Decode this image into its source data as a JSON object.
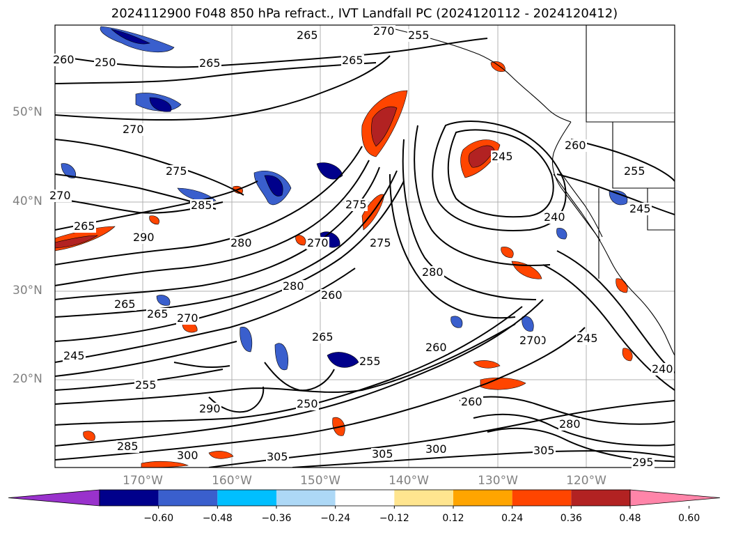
{
  "title": "2024112900 F048 850 hPa refract., IVT Landfall PC (2024120112 - 2024120412)",
  "lat_labels": [
    "50°N",
    "40°N",
    "30°N",
    "20°N"
  ],
  "lon_labels": [
    "170°W",
    "160°W",
    "150°W",
    "140°W",
    "130°W",
    "120°W"
  ],
  "colorbar": {
    "colors": [
      "#9932cc",
      "#00008b",
      "#3a5fcd",
      "#00bfff",
      "#add8f6",
      "#ffffff",
      "#ffe58f",
      "#ffa500",
      "#ff4500",
      "#b22222",
      "#ff85a9"
    ],
    "ticks": [
      "−0.60",
      "−0.48",
      "−0.36",
      "−0.24",
      "−0.12",
      "0.12",
      "0.24",
      "0.36",
      "0.48",
      "0.60"
    ]
  },
  "contour_labels": [
    "250",
    "265",
    "260",
    "265",
    "265",
    "255",
    "270",
    "270",
    "275",
    "285",
    "270",
    "265",
    "290",
    "280",
    "275",
    "275",
    "270",
    "245",
    "260",
    "240",
    "255",
    "245",
    "280",
    "280",
    "270",
    "260",
    "265",
    "255",
    "265",
    "270",
    "245",
    "260",
    "270",
    "245",
    "240",
    "290",
    "255",
    "265",
    "285",
    "300",
    "305",
    "305",
    "300",
    "260",
    "250",
    "305",
    "280",
    "295"
  ]
}
